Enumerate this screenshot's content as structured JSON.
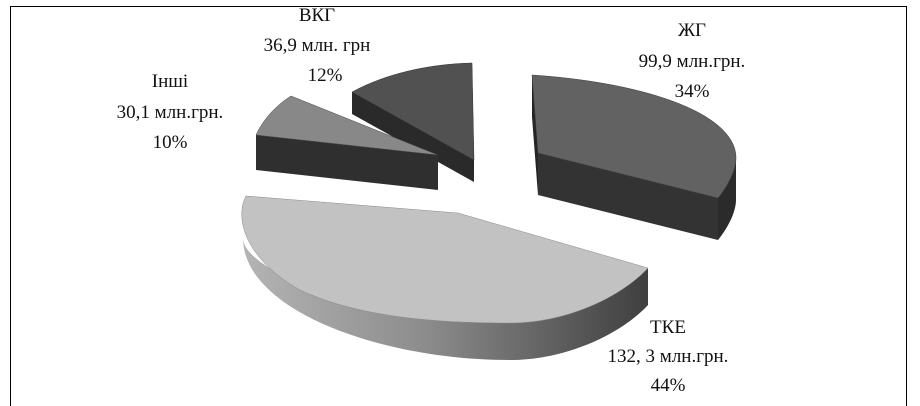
{
  "chart_data": {
    "type": "pie",
    "title": "",
    "colors": {
      "ЖГ": {
        "top": "#626262",
        "side": "#333333"
      },
      "ТКЕ": {
        "top": "#c2c2c2",
        "side_light": "#a6a6a6",
        "side_dark": "#4a4a4a"
      },
      "Інші": {
        "top": "#888888",
        "side": "#2f2f2f"
      },
      "ВКГ": {
        "top": "#515151",
        "side": "#2a2a2a"
      }
    },
    "slices": [
      {
        "name": "ЖГ",
        "value_text": "99,9 млн.грн.",
        "value": 99.9,
        "percent_text": "34%",
        "percent": 34
      },
      {
        "name": "ТКЕ",
        "value_text": "132, 3 млн.грн.",
        "value": 132.3,
        "percent_text": "44%",
        "percent": 44
      },
      {
        "name": "Інші",
        "value_text": "30,1 млн.грн.",
        "value": 30.1,
        "percent_text": "10%",
        "percent": 10
      },
      {
        "name": "ВКГ",
        "value_text": "36,9 млн. грн",
        "value": 36.9,
        "percent_text": "12%",
        "percent": 12
      }
    ]
  }
}
